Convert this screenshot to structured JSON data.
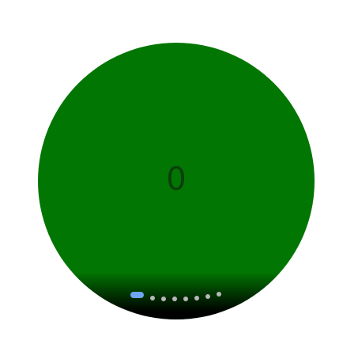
{
  "counter": {
    "value": "0"
  },
  "colors": {
    "face_background": "#027602",
    "counter_text": "#0d3f0d",
    "indicator_active": "#6ea6f5",
    "indicator_inactive": "#b8b8b8"
  },
  "page_indicator": {
    "page_count": 8,
    "current_page": 1
  }
}
